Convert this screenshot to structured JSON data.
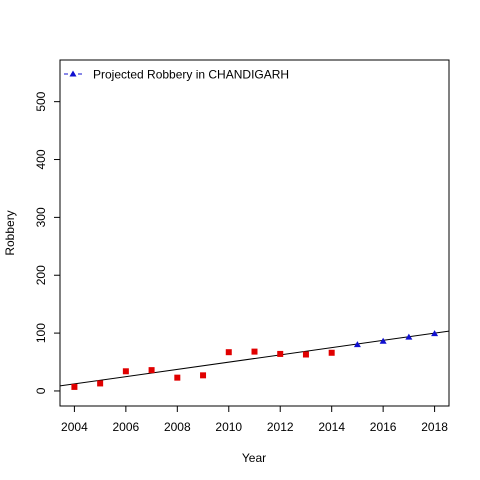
{
  "chart_data": {
    "type": "scatter",
    "title": "",
    "xlabel": "Year",
    "ylabel": "Robbery",
    "xlim": [
      2003.44,
      2018.56
    ],
    "ylim": [
      -26,
      572
    ],
    "x_ticks": [
      "2004",
      "2006",
      "2008",
      "2010",
      "2012",
      "2014",
      "2016",
      "2018"
    ],
    "y_ticks": [
      "0",
      "100",
      "200",
      "300",
      "400",
      "500"
    ],
    "grid": false,
    "legend_position": "top-left",
    "series": [
      {
        "kind": "observed",
        "marker": "square",
        "color": "#e00000",
        "points": [
          [
            2004,
            7
          ],
          [
            2005,
            13
          ],
          [
            2006,
            34
          ],
          [
            2007,
            36
          ],
          [
            2008,
            23
          ],
          [
            2009,
            27
          ],
          [
            2010,
            67
          ],
          [
            2011,
            68
          ],
          [
            2012,
            64
          ],
          [
            2013,
            63
          ],
          [
            2014,
            66
          ]
        ]
      },
      {
        "name": "Projected Robbery  in  CHANDIGARH",
        "kind": "projected",
        "marker": "triangle",
        "color": "#1010d0",
        "points": [
          [
            2015,
            80
          ],
          [
            2016,
            86
          ],
          [
            2017,
            93
          ],
          [
            2018,
            99
          ]
        ]
      }
    ],
    "trend_line": {
      "color": "#000000",
      "slope": 6.27,
      "intercept_at_2004": 12.2
    }
  }
}
